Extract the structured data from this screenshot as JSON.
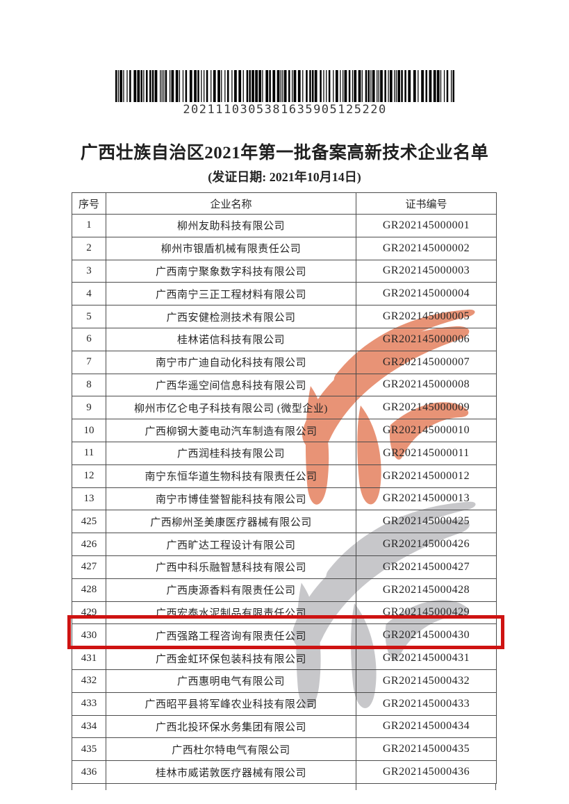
{
  "barcode": {
    "number": "2021110305381635905125220"
  },
  "header": {
    "title": "广西壮族自治区2021年第一批备案高新技术企业名单",
    "subtitle": "(发证日期: 2021年10月14日)"
  },
  "watermark": {
    "icon": "torch-flame",
    "top_color": "#e78a6b",
    "bottom_color": "#c5c5c8"
  },
  "highlight": {
    "serial": "430",
    "color": "#ce1312"
  },
  "table": {
    "columns": [
      "序号",
      "企业名称",
      "证书编号"
    ],
    "rows": [
      {
        "serial": "1",
        "name": "柳州友助科技有限公司",
        "cert": "GR202145000001"
      },
      {
        "serial": "2",
        "name": "柳州市银盾机械有限责任公司",
        "cert": "GR202145000002"
      },
      {
        "serial": "3",
        "name": "广西南宁聚象数字科技有限公司",
        "cert": "GR202145000003"
      },
      {
        "serial": "4",
        "name": "广西南宁三正工程材料有限公司",
        "cert": "GR202145000004"
      },
      {
        "serial": "5",
        "name": "广西安健检测技术有限公司",
        "cert": "GR202145000005"
      },
      {
        "serial": "6",
        "name": "桂林诺信科技有限公司",
        "cert": "GR202145000006"
      },
      {
        "serial": "7",
        "name": "南宁市广迪自动化科技有限公司",
        "cert": "GR202145000007"
      },
      {
        "serial": "8",
        "name": "广西华遥空间信息科技有限公司",
        "cert": "GR202145000008"
      },
      {
        "serial": "9",
        "name": "柳州市亿仑电子科技有限公司 (微型企业)",
        "cert": "GR202145000009"
      },
      {
        "serial": "10",
        "name": "广西柳钢大菱电动汽车制造有限公司",
        "cert": "GR202145000010"
      },
      {
        "serial": "11",
        "name": "广西润桂科技有限公司",
        "cert": "GR202145000011"
      },
      {
        "serial": "12",
        "name": "南宁东恒华道生物科技有限责任公司",
        "cert": "GR202145000012"
      },
      {
        "serial": "13",
        "name": "南宁市博佳誉智能科技有限公司",
        "cert": "GR202145000013"
      },
      {
        "serial": "425",
        "name": "广西柳州圣美康医疗器械有限公司",
        "cert": "GR202145000425"
      },
      {
        "serial": "426",
        "name": "广西旷达工程设计有限公司",
        "cert": "GR202145000426"
      },
      {
        "serial": "427",
        "name": "广西中科乐融智慧科技有限公司",
        "cert": "GR202145000427"
      },
      {
        "serial": "428",
        "name": "广西庚源香料有限责任公司",
        "cert": "GR202145000428"
      },
      {
        "serial": "429",
        "name": "广西宏泰水泥制品有限责任公司",
        "cert": "GR202145000429"
      },
      {
        "serial": "430",
        "name": "广西强路工程咨询有限责任公司",
        "cert": "GR202145000430"
      },
      {
        "serial": "431",
        "name": "广西金虹环保包装科技有限公司",
        "cert": "GR202145000431"
      },
      {
        "serial": "432",
        "name": "广西惠明电气有限公司",
        "cert": "GR202145000432"
      },
      {
        "serial": "433",
        "name": "广西昭平县将军峰农业科技有限公司",
        "cert": "GR202145000433"
      },
      {
        "serial": "434",
        "name": "广西北投环保水务集团有限公司",
        "cert": "GR202145000434"
      },
      {
        "serial": "435",
        "name": "广西杜尔特电气有限公司",
        "cert": "GR202145000435"
      },
      {
        "serial": "436",
        "name": "桂林市威诺敦医疗器械有限公司",
        "cert": "GR202145000436"
      }
    ]
  }
}
